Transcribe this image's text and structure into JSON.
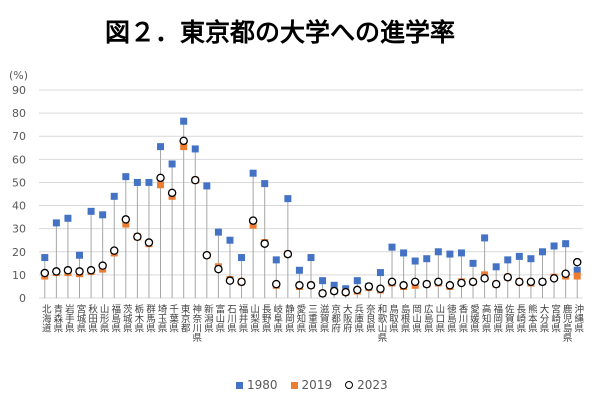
{
  "chart_data": {
    "type": "scatter",
    "title": "図２．東京都の大学への進学率",
    "ylabel": "(%)",
    "ylim": [
      0,
      90
    ],
    "yticks": [
      0,
      10,
      20,
      30,
      40,
      50,
      60,
      70,
      80,
      90
    ],
    "grid": true,
    "legend_position": "bottom",
    "categories": [
      "北海道",
      "青森県",
      "岩手県",
      "宮城県",
      "秋田県",
      "山形県",
      "福島県",
      "茨城県",
      "栃木県",
      "群馬県",
      "埼玉県",
      "千葉県",
      "東京都",
      "神奈川県",
      "新潟県",
      "富山県",
      "石川県",
      "福井県",
      "山梨県",
      "長野県",
      "岐阜県",
      "静岡県",
      "愛知県",
      "三重県",
      "滋賀県",
      "京都府",
      "大阪府",
      "兵庫県",
      "奈良県",
      "和歌山県",
      "鳥取県",
      "島根県",
      "岡山県",
      "広島県",
      "山口県",
      "徳島県",
      "香川県",
      "愛媛県",
      "高知県",
      "福岡県",
      "佐賀県",
      "長崎県",
      "熊本県",
      "大分県",
      "宮崎県",
      "鹿児島県",
      "沖縄県"
    ],
    "series": [
      {
        "name": "1980",
        "color": "#4472C4",
        "marker_icon": "square-icon",
        "values": [
          17.5,
          32.5,
          34.5,
          18.5,
          37.5,
          36.0,
          44.0,
          52.5,
          50.0,
          50.0,
          65.5,
          58.0,
          76.5,
          64.5,
          48.5,
          28.5,
          25.0,
          17.5,
          54.0,
          49.5,
          16.5,
          43.0,
          12.0,
          17.5,
          7.5,
          5.5,
          4.0,
          7.5,
          5.0,
          11.0,
          22.0,
          19.5,
          16.0,
          17.0,
          20.0,
          19.0,
          19.5,
          15.0,
          26.0,
          13.5,
          16.5,
          18.0,
          17.0,
          20.0,
          22.5,
          23.5,
          12.0
        ]
      },
      {
        "name": "2019",
        "color": "#ED7D31",
        "marker_icon": "square-icon",
        "values": [
          9.5,
          11.0,
          11.0,
          10.5,
          11.5,
          12.5,
          19.5,
          32.0,
          26.5,
          23.5,
          49.0,
          44.0,
          65.5,
          51.0,
          18.5,
          13.5,
          8.0,
          7.0,
          31.5,
          24.0,
          5.5,
          19.0,
          5.0,
          5.5,
          2.0,
          3.0,
          2.5,
          3.0,
          4.5,
          3.5,
          6.5,
          5.0,
          5.5,
          6.0,
          6.5,
          5.0,
          7.0,
          7.0,
          10.0,
          6.0,
          9.0,
          7.0,
          6.5,
          7.0,
          9.0,
          9.5,
          9.5
        ]
      },
      {
        "name": "2023",
        "color": "#000000",
        "fill": "#FFFFFF",
        "marker_icon": "circle-icon",
        "values": [
          10.8,
          11.5,
          12.0,
          11.5,
          12.0,
          14.0,
          20.5,
          34.0,
          26.5,
          24.0,
          52.0,
          45.5,
          68.0,
          51.0,
          18.5,
          12.5,
          7.5,
          7.0,
          33.5,
          23.5,
          6.0,
          19.0,
          5.5,
          5.5,
          2.0,
          3.0,
          2.5,
          3.5,
          5.0,
          4.0,
          7.0,
          5.5,
          7.0,
          6.0,
          7.0,
          5.5,
          6.5,
          7.0,
          8.5,
          6.0,
          9.0,
          7.0,
          7.0,
          7.0,
          8.5,
          10.5,
          15.5
        ]
      }
    ]
  }
}
